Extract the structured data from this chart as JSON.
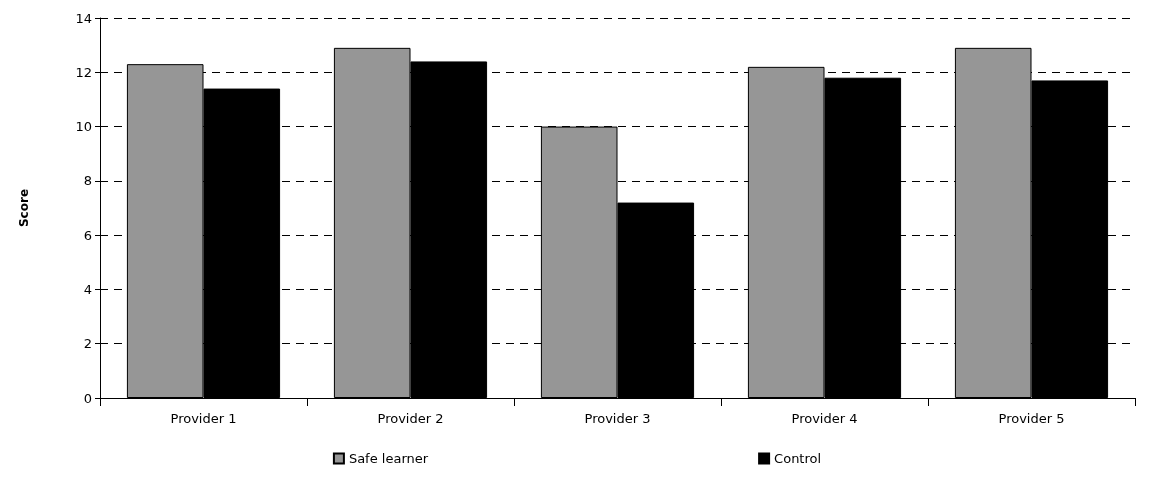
{
  "chart_data": {
    "type": "bar",
    "ylabel": "Score",
    "categories": [
      "Provider 1",
      "Provider 2",
      "Provider 3",
      "Provider 4",
      "Provider 5"
    ],
    "series": [
      {
        "name": "Safe learner",
        "color": "#969696",
        "values": [
          12.3,
          12.9,
          10.0,
          12.2,
          12.9
        ]
      },
      {
        "name": "Control",
        "color": "#000000",
        "values": [
          11.4,
          12.4,
          7.2,
          11.8,
          11.7
        ]
      }
    ],
    "ylim": [
      0,
      14
    ],
    "yticks": [
      0,
      2,
      4,
      6,
      8,
      10,
      12,
      14
    ],
    "grid": "y",
    "legend": "bottom"
  }
}
